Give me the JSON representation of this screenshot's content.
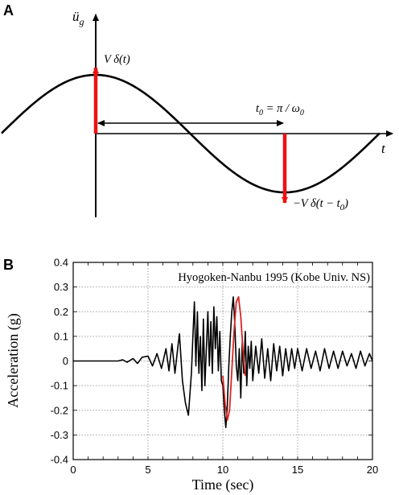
{
  "panel_a": {
    "label": "A",
    "y_axis_symbol": "ü",
    "y_axis_subscript": "g",
    "x_axis_symbol": "t",
    "impulse_up_label": "V δ(t)",
    "impulse_down_label": "−V δ(t − t",
    "impulse_down_sub": "0",
    "impulse_down_close": ")",
    "t0_label_a": "t",
    "t0_label_sub": "0",
    "t0_label_eq": " = π / ω",
    "t0_label_sub2": "0",
    "colors": {
      "curve": "#000000",
      "impulse": "#ee1111"
    }
  },
  "panel_b": {
    "label": "B"
  },
  "chart_data": {
    "type": "line",
    "title": "Hyogoken-Nanbu 1995 (Kobe Univ. NS)",
    "xlabel": "Time (sec)",
    "ylabel": "Acceleration (g)",
    "xlim": [
      0,
      20
    ],
    "ylim": [
      -0.4,
      0.4
    ],
    "xticks": [
      0,
      5,
      10,
      15,
      20
    ],
    "xtick_labels": [
      "0",
      "5",
      "10",
      "15",
      "20"
    ],
    "yticks": [
      -0.4,
      -0.3,
      -0.2,
      -0.1,
      0,
      0.1,
      0.2,
      0.3,
      0.4
    ],
    "ytick_labels": [
      "-0.4",
      "-0.3",
      "-0.2",
      "-0.1",
      "0",
      "0.1",
      "0.2",
      "0.3",
      "0.4"
    ],
    "grid": true,
    "series": [
      {
        "color": "#000000",
        "x": [
          0,
          1,
          2,
          3,
          3.3,
          3.6,
          4.0,
          4.3,
          4.6,
          5.0,
          5.3,
          5.6,
          5.9,
          6.2,
          6.4,
          6.6,
          6.8,
          7.0,
          7.1,
          7.3,
          7.5,
          7.7,
          7.9,
          8.0,
          8.1,
          8.2,
          8.3,
          8.4,
          8.5,
          8.6,
          8.7,
          8.8,
          8.9,
          9.0,
          9.1,
          9.2,
          9.3,
          9.4,
          9.5,
          9.6,
          9.7,
          9.8,
          9.9,
          10.0,
          10.1,
          10.2,
          10.3,
          10.4,
          10.5,
          10.6,
          10.7,
          10.8,
          10.9,
          11.0,
          11.1,
          11.2,
          11.3,
          11.4,
          11.5,
          11.6,
          11.7,
          11.8,
          11.9,
          12.0,
          12.2,
          12.4,
          12.6,
          12.8,
          13.0,
          13.2,
          13.4,
          13.6,
          13.8,
          14.0,
          14.2,
          14.4,
          14.6,
          14.8,
          15.0,
          15.3,
          15.6,
          15.9,
          16.2,
          16.5,
          16.8,
          17.1,
          17.4,
          17.7,
          18.0,
          18.3,
          18.6,
          18.9,
          19.2,
          19.5,
          19.8,
          20.0
        ],
        "y": [
          0,
          0,
          0,
          0,
          0.005,
          -0.005,
          0.01,
          -0.01,
          0.015,
          0.02,
          -0.02,
          0.03,
          -0.03,
          0.05,
          -0.04,
          0.07,
          -0.05,
          0.06,
          0.11,
          -0.08,
          -0.17,
          -0.22,
          -0.05,
          0.1,
          0.24,
          -0.02,
          0.2,
          -0.05,
          0.1,
          -0.12,
          0.17,
          -0.1,
          0.05,
          0.2,
          -0.02,
          0.16,
          -0.05,
          0.22,
          0.05,
          0.18,
          -0.04,
          0.12,
          -0.08,
          -0.1,
          -0.2,
          -0.27,
          -0.18,
          -0.02,
          0.1,
          0.2,
          0.26,
          0.15,
          -0.02,
          -0.08,
          0.05,
          -0.15,
          0.08,
          -0.05,
          0.12,
          -0.1,
          0.06,
          -0.03,
          0.08,
          -0.08,
          0.06,
          -0.05,
          0.09,
          -0.07,
          0.05,
          -0.08,
          0.07,
          -0.04,
          0.06,
          -0.06,
          0.05,
          -0.04,
          0.05,
          -0.03,
          0.05,
          -0.04,
          0.05,
          -0.03,
          0.04,
          -0.04,
          0.05,
          -0.03,
          0.04,
          -0.03,
          0.04,
          -0.02,
          0.03,
          -0.03,
          0.04,
          -0.02,
          0.03,
          0
        ]
      },
      {
        "color": "#dd2222",
        "x": [
          10.0,
          10.15,
          10.3,
          10.45,
          10.6,
          10.75,
          10.9,
          11.05,
          11.2,
          11.35,
          11.5
        ],
        "y": [
          -0.06,
          -0.17,
          -0.24,
          -0.2,
          -0.04,
          0.12,
          0.24,
          0.26,
          0.18,
          0.04,
          -0.06
        ]
      }
    ]
  }
}
